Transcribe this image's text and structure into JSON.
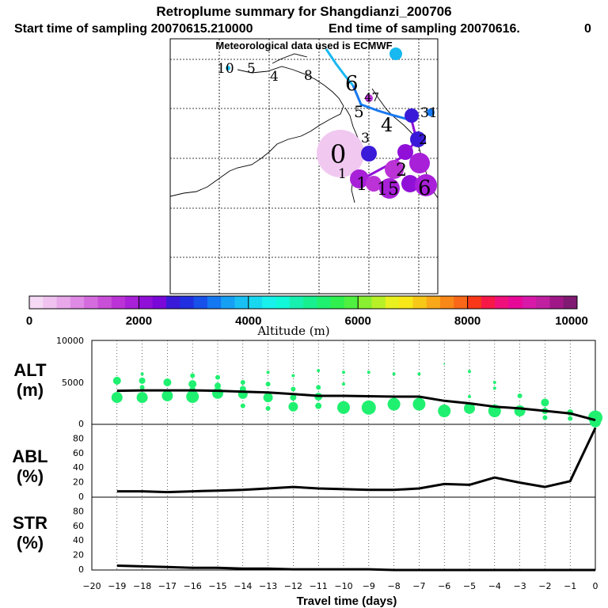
{
  "title": "Retroplume summary for Shangdianzi_200706",
  "subtitle_start": "Start time of sampling 20070615.210000",
  "subtitle_end": "End time of sampling 20070616.",
  "subtitle_end_suffix": "0",
  "met_line": "Meteorological data used is ECMWF",
  "colorbar": {
    "label": "Altitude (m)",
    "ticks": [
      "0",
      "2000",
      "4000",
      "6000",
      "8000",
      "10000"
    ],
    "colors": [
      "#f5d9f5",
      "#efc2ef",
      "#e8a8ea",
      "#df8ae4",
      "#d56cde",
      "#ca4fd8",
      "#bb33d6",
      "#a820d8",
      "#9010d8",
      "#7a08d8",
      "#3a1ad8",
      "#2030e0",
      "#1850ea",
      "#1478f2",
      "#16a0f4",
      "#18c0f4",
      "#18d8f0",
      "#18f0ec",
      "#10f8d8",
      "#18f0b0",
      "#18f090",
      "#20f070",
      "#30f050",
      "#50f040",
      "#88f030",
      "#b8f028",
      "#e8f020",
      "#f8e818",
      "#f8c818",
      "#f8a818",
      "#f88818",
      "#f86818",
      "#f83818",
      "#f81848",
      "#f0107c",
      "#e80898",
      "#d818a8",
      "#c020a0",
      "#a01888",
      "#801a72"
    ]
  },
  "map": {
    "day_labels": [
      {
        "t": "10",
        "color": "#18c0f4"
      },
      {
        "t": "5",
        "color": "#18c0f4"
      },
      {
        "t": "4",
        "color": "#20f070"
      },
      {
        "t": "8",
        "color": "#18c0f4"
      },
      {
        "t": "6",
        "color": "#18c0f4"
      },
      {
        "t": "5",
        "color": "#18c0f4"
      },
      {
        "t": "47",
        "color": "#9010d8"
      },
      {
        "t": "4",
        "color": "#3a1ad8"
      },
      {
        "t": "31",
        "color": "#1478f2"
      },
      {
        "t": "3",
        "color": "#3a1ad8"
      },
      {
        "t": "2",
        "color": "#3a1ad8"
      },
      {
        "t": "0",
        "color": "#efc2ef"
      },
      {
        "t": "1",
        "color": "#bb33d6"
      },
      {
        "t": "1",
        "color": "#bb33d6"
      },
      {
        "t": "15",
        "color": "#bb33d6"
      },
      {
        "t": "2",
        "color": "#bb33d6"
      },
      {
        "t": "6",
        "color": "#bb33d6"
      }
    ]
  },
  "panels": {
    "alt": {
      "label1": "ALT",
      "label2": "(m)",
      "yticks": [
        "0",
        "5000",
        "10000"
      ]
    },
    "abl": {
      "label1": "ABL",
      "label2": "(%)",
      "yticks": [
        "0",
        "20",
        "40",
        "60",
        "80"
      ]
    },
    "str": {
      "label1": "STR",
      "label2": "(%)",
      "yticks": [
        "0",
        "20",
        "40",
        "60",
        "80"
      ]
    }
  },
  "xlabel": "Travel time (days)",
  "chart_data": {
    "type": "line",
    "title": "Retroplume summary for Shangdianzi_200706",
    "xlabel": "Travel time (days)",
    "x": [
      -20,
      -19,
      -18,
      -17,
      -16,
      -15,
      -14,
      -13,
      -12,
      -11,
      -10,
      -9,
      -8,
      -7,
      -6,
      -5,
      -4,
      -3,
      -2,
      -1,
      0
    ],
    "x_ticks": [
      "−20",
      "−19",
      "−18",
      "−17",
      "−16",
      "−15",
      "−14",
      "−13",
      "−12",
      "−11",
      "−10",
      "−9",
      "−8",
      "−7",
      "−6",
      "−5",
      "−4",
      "−3",
      "−2",
      "−1",
      "0"
    ],
    "series": [
      {
        "name": "ALT mean (m)",
        "ylim": [
          0,
          10000
        ],
        "x": [
          -19,
          -18,
          -17,
          -16,
          -15,
          -14,
          -13,
          -12,
          -11,
          -10,
          -9,
          -8,
          -7,
          -6,
          -5,
          -4,
          -3,
          -2,
          -1,
          0
        ],
        "values": [
          4000,
          4050,
          4050,
          4050,
          4000,
          3900,
          3800,
          3600,
          3400,
          3400,
          3350,
          3300,
          3300,
          2800,
          2500,
          2100,
          1900,
          1600,
          1300,
          500
        ]
      },
      {
        "name": "ABL (%)",
        "ylim": [
          0,
          100
        ],
        "x": [
          -19,
          -18,
          -17,
          -16,
          -15,
          -14,
          -13,
          -12,
          -11,
          -10,
          -9,
          -8,
          -7,
          -6,
          -5,
          -4,
          -3,
          -2,
          -1,
          0
        ],
        "values": [
          8,
          8,
          7,
          8,
          9,
          10,
          12,
          14,
          12,
          11,
          10,
          10,
          12,
          18,
          17,
          27,
          20,
          14,
          22,
          95
        ]
      },
      {
        "name": "STR (%)",
        "ylim": [
          0,
          100
        ],
        "x": [
          -19,
          -18,
          -17,
          -16,
          -15,
          -14,
          -13,
          -12,
          -11,
          -10,
          -9,
          -8,
          -7,
          -6,
          -5,
          -4,
          -3,
          -2,
          -1,
          0
        ],
        "values": [
          6,
          5,
          4,
          3,
          3,
          2,
          2,
          1,
          1,
          1,
          1,
          0,
          0,
          0,
          0,
          0,
          0,
          0,
          0,
          0
        ]
      }
    ],
    "alt_cluster_points": [
      {
        "x": -19,
        "alt": 5200,
        "w": 5
      },
      {
        "x": -19,
        "alt": 3200,
        "w": 7
      },
      {
        "x": -18,
        "alt": 6000,
        "w": 2
      },
      {
        "x": -18,
        "alt": 5200,
        "w": 4
      },
      {
        "x": -18,
        "alt": 4400,
        "w": 3
      },
      {
        "x": -18,
        "alt": 3200,
        "w": 7
      },
      {
        "x": -17,
        "alt": 5000,
        "w": 5
      },
      {
        "x": -17,
        "alt": 3400,
        "w": 7
      },
      {
        "x": -16,
        "alt": 5800,
        "w": 3
      },
      {
        "x": -16,
        "alt": 4800,
        "w": 5
      },
      {
        "x": -16,
        "alt": 4100,
        "w": 4
      },
      {
        "x": -16,
        "alt": 3300,
        "w": 8
      },
      {
        "x": -15,
        "alt": 5600,
        "w": 3
      },
      {
        "x": -15,
        "alt": 4600,
        "w": 4
      },
      {
        "x": -15,
        "alt": 3700,
        "w": 7
      },
      {
        "x": -14,
        "alt": 5000,
        "w": 3
      },
      {
        "x": -14,
        "alt": 4200,
        "w": 4
      },
      {
        "x": -14,
        "alt": 3600,
        "w": 6
      },
      {
        "x": -14,
        "alt": 2200,
        "w": 3
      },
      {
        "x": -13,
        "alt": 6200,
        "w": 2
      },
      {
        "x": -13,
        "alt": 4800,
        "w": 3
      },
      {
        "x": -13,
        "alt": 3200,
        "w": 6
      },
      {
        "x": -13,
        "alt": 1900,
        "w": 3
      },
      {
        "x": -12,
        "alt": 5800,
        "w": 2
      },
      {
        "x": -12,
        "alt": 4200,
        "w": 3
      },
      {
        "x": -12,
        "alt": 3200,
        "w": 4
      },
      {
        "x": -12,
        "alt": 2100,
        "w": 6
      },
      {
        "x": -11,
        "alt": 6400,
        "w": 2
      },
      {
        "x": -11,
        "alt": 4400,
        "w": 3
      },
      {
        "x": -11,
        "alt": 3300,
        "w": 5
      },
      {
        "x": -11,
        "alt": 2200,
        "w": 4
      },
      {
        "x": -10,
        "alt": 6200,
        "w": 2
      },
      {
        "x": -10,
        "alt": 4800,
        "w": 2
      },
      {
        "x": -10,
        "alt": 2000,
        "w": 8
      },
      {
        "x": -9,
        "alt": 6200,
        "w": 2
      },
      {
        "x": -9,
        "alt": 2000,
        "w": 9
      },
      {
        "x": -8,
        "alt": 6000,
        "w": 2
      },
      {
        "x": -8,
        "alt": 2400,
        "w": 8
      },
      {
        "x": -7,
        "alt": 6000,
        "w": 2
      },
      {
        "x": -7,
        "alt": 2400,
        "w": 8
      },
      {
        "x": -6,
        "alt": 7200,
        "w": 1
      },
      {
        "x": -6,
        "alt": 1600,
        "w": 8
      },
      {
        "x": -5,
        "alt": 6300,
        "w": 2
      },
      {
        "x": -5,
        "alt": 3300,
        "w": 2
      },
      {
        "x": -5,
        "alt": 1900,
        "w": 7
      },
      {
        "x": -4,
        "alt": 5000,
        "w": 2
      },
      {
        "x": -4,
        "alt": 4300,
        "w": 2
      },
      {
        "x": -4,
        "alt": 1600,
        "w": 8
      },
      {
        "x": -3,
        "alt": 3400,
        "w": 3
      },
      {
        "x": -3,
        "alt": 1600,
        "w": 7
      },
      {
        "x": -2,
        "alt": 2600,
        "w": 5
      },
      {
        "x": -2,
        "alt": 1600,
        "w": 4
      },
      {
        "x": -2,
        "alt": 800,
        "w": 3
      },
      {
        "x": -1,
        "alt": 1400,
        "w": 4
      },
      {
        "x": -1,
        "alt": 700,
        "w": 3
      },
      {
        "x": 0,
        "alt": 800,
        "w": 9
      },
      {
        "x": 0,
        "alt": 300,
        "w": 7
      }
    ]
  }
}
